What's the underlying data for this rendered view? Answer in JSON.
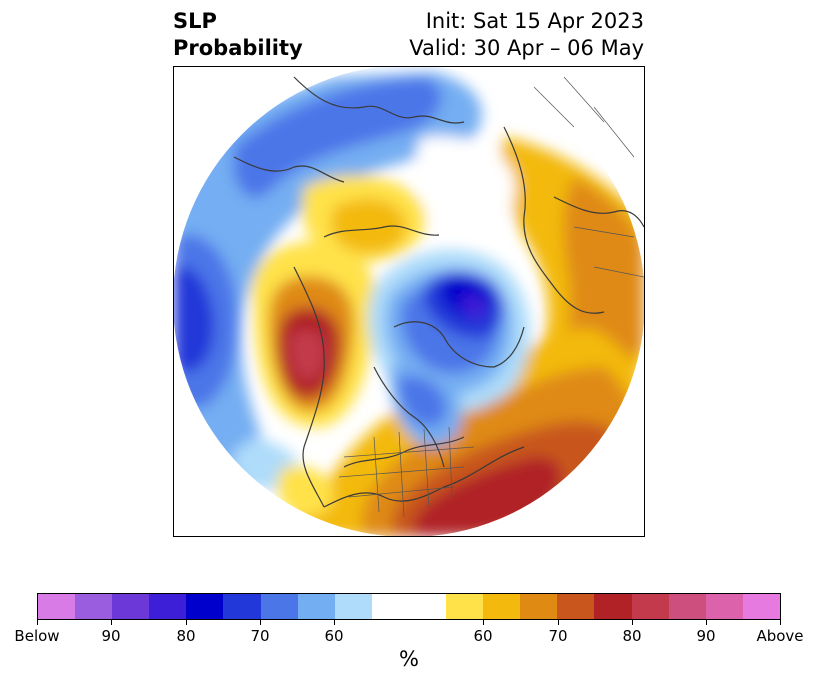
{
  "title": {
    "left_line1": "SLP",
    "left_line2": "Probability",
    "right_line1": "Init: Sat 15 Apr 2023",
    "right_line2": "Valid: 30 Apr – 06 May"
  },
  "colorbar": {
    "label": "%",
    "tick_labels": [
      "Below",
      "90",
      "80",
      "70",
      "60",
      "60",
      "70",
      "80",
      "90",
      "Above"
    ],
    "colors": [
      "#d97be6",
      "#9b5de0",
      "#6c38d8",
      "#3c1fd6",
      "#0000cc",
      "#2338d8",
      "#4b76e8",
      "#74aef2",
      "#aedcfa",
      "#ffffff",
      "#ffe24a",
      "#f3b90c",
      "#df8a12",
      "#c8561d",
      "#b02226",
      "#c23a4c",
      "#cc4f7e",
      "#db62ab",
      "#e67ae0"
    ]
  },
  "map": {
    "projection": "north-polar-stereographic",
    "variable": "sea-level pressure probability",
    "features": [
      "coastlines",
      "country borders",
      "US state borders"
    ],
    "palette": {
      "below_strong": "#0000cc",
      "below_mid": "#4b76e8",
      "below_weak": "#aedcfa",
      "above_weak": "#ffe24a",
      "above_mid": "#df8a12",
      "above_strong": "#b02226",
      "above_max": "#c23a4c"
    }
  }
}
